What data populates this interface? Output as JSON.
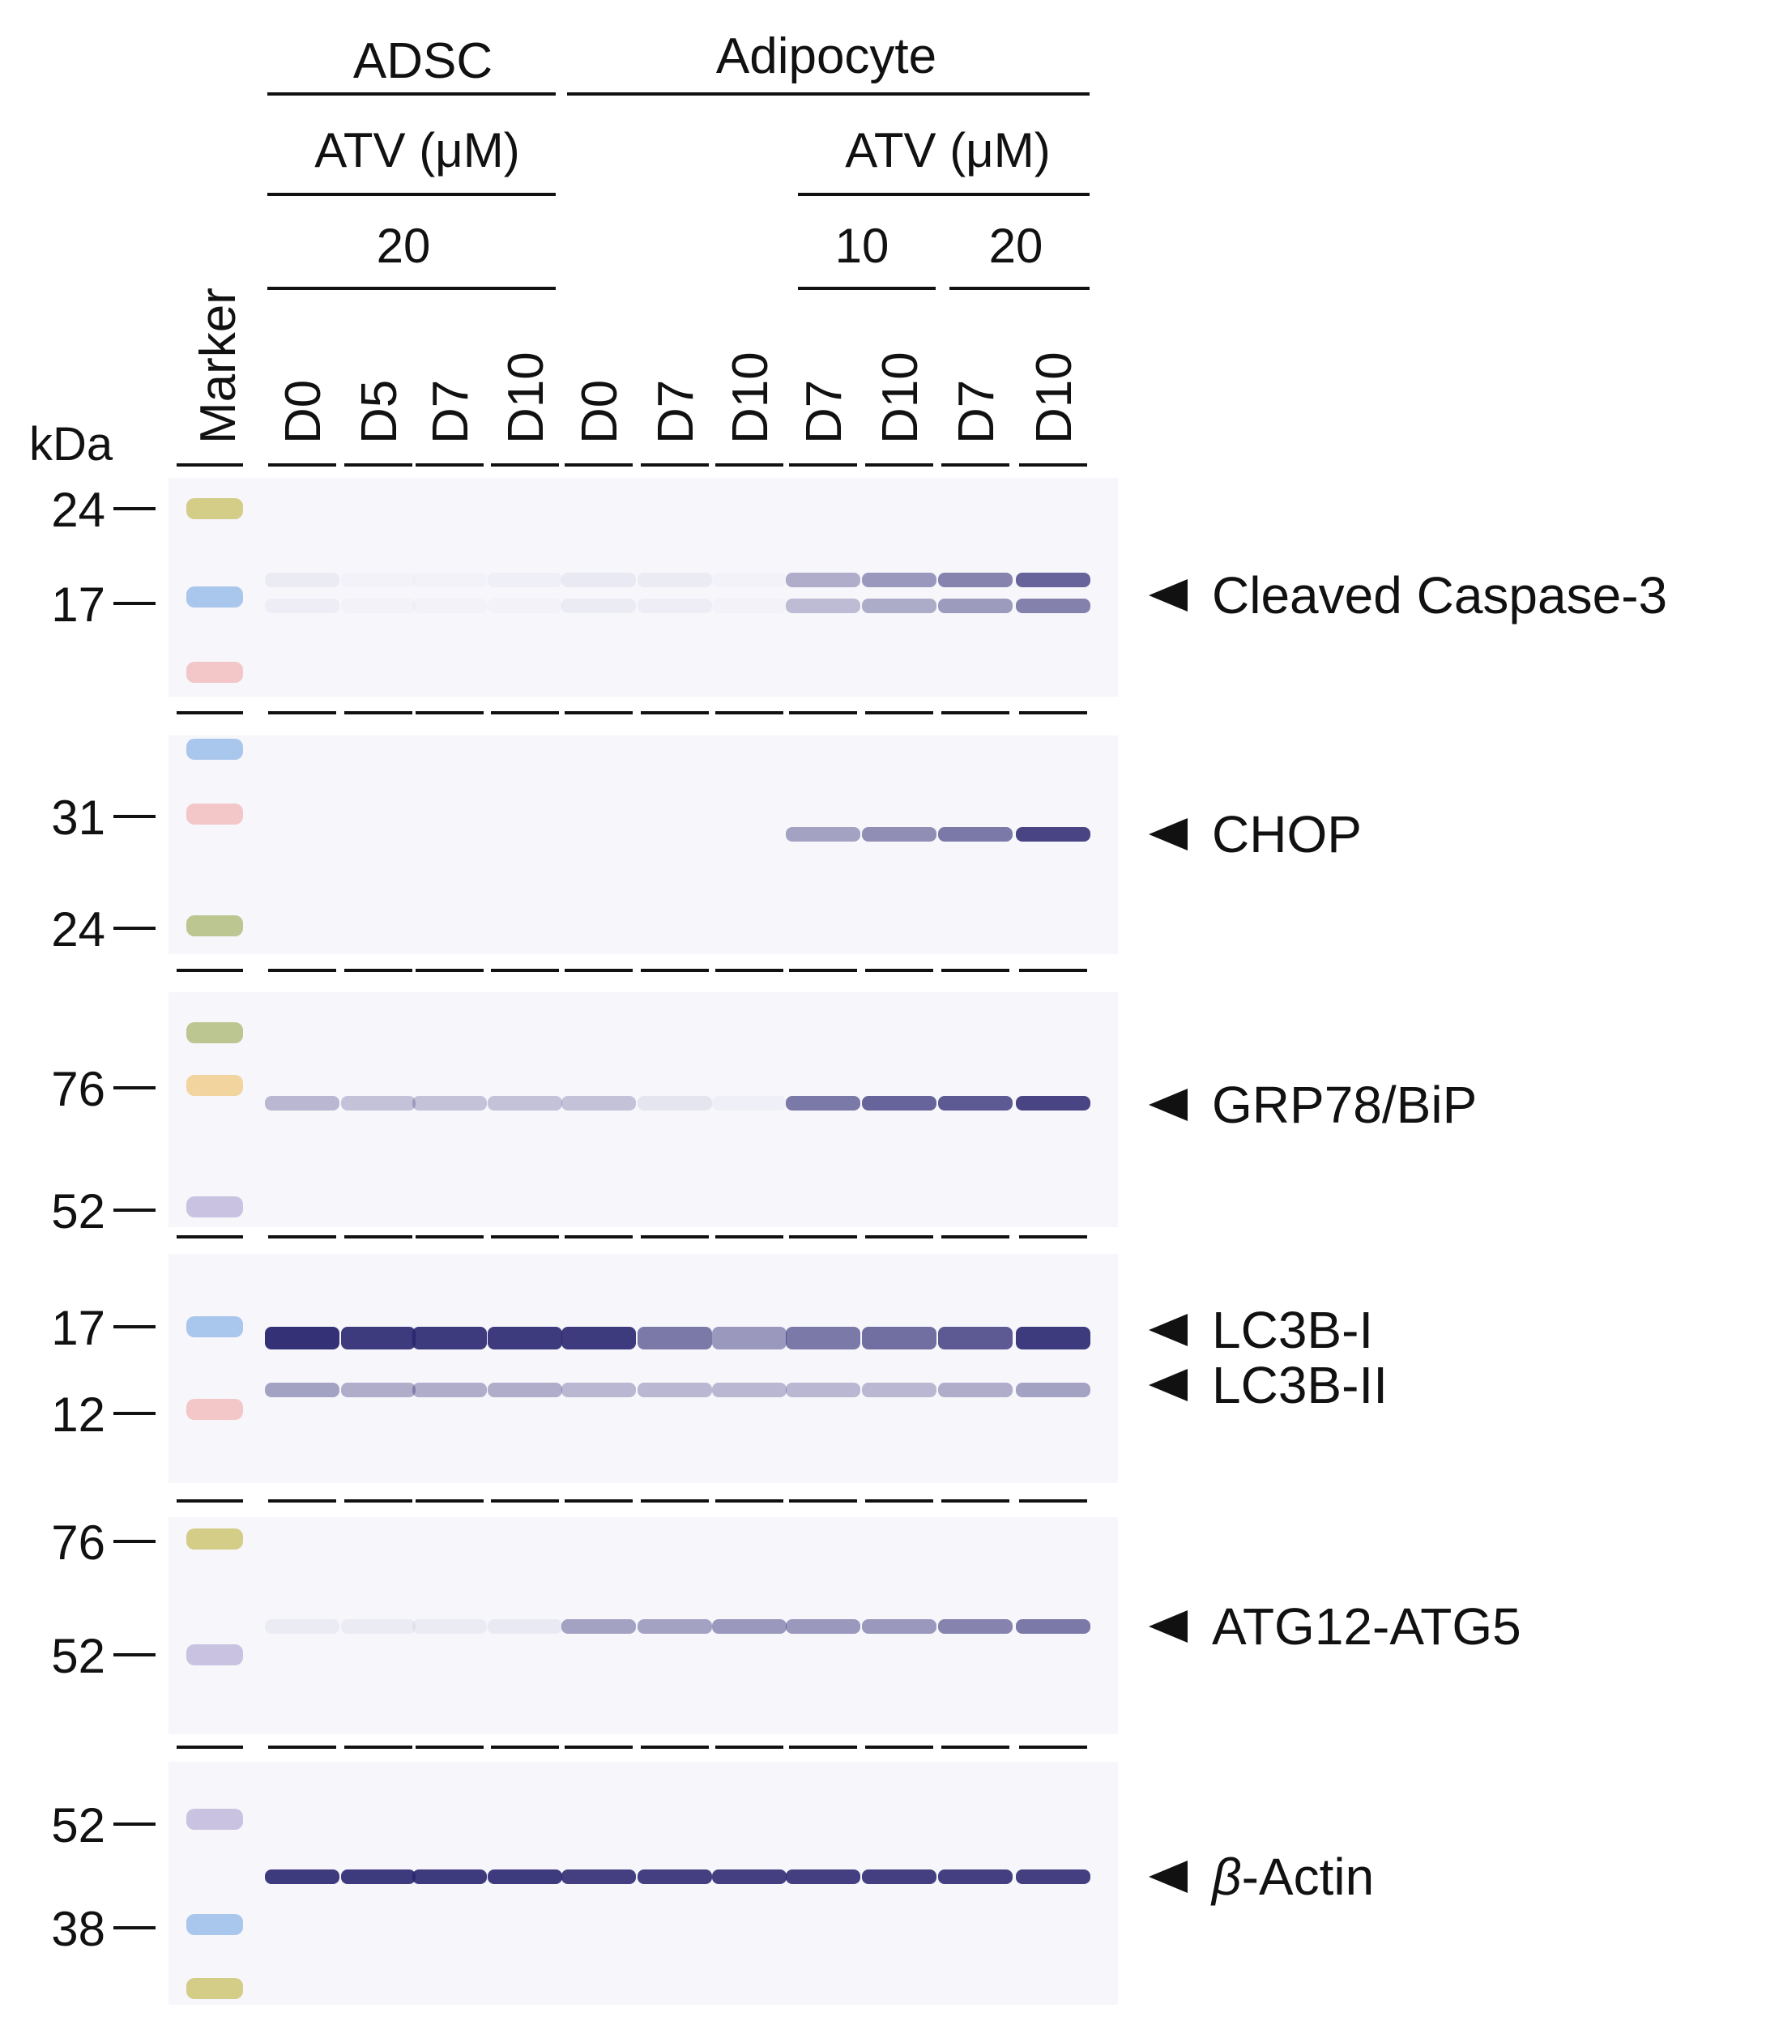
{
  "groups": {
    "adsc": "ADSC",
    "adipocyte": "Adipocyte"
  },
  "treatment": {
    "adsc_label": "ATV (μM)",
    "adipocyte_label": "ATV (μM)",
    "adsc_dose": "20",
    "adipocyte_dose_low": "10",
    "adipocyte_dose_high": "20"
  },
  "marker_label": "Marker",
  "unit_label": "kDa",
  "lanes": [
    "D0",
    "D5",
    "D7",
    "D10",
    "D0",
    "D7",
    "D10",
    "D7",
    "D10",
    "D7",
    "D10"
  ],
  "blots": [
    {
      "target": "Cleaved Caspase-3",
      "mw_markers": [
        "24",
        "17"
      ],
      "bands": [
        [
          0.05,
          0.02,
          0.02,
          0.03,
          0.06,
          0.05,
          0.02,
          0.35,
          0.45,
          0.55,
          0.7
        ]
      ]
    },
    {
      "target": "CHOP",
      "mw_markers": [
        "31",
        "24"
      ],
      "bands": [
        [
          0,
          0,
          0,
          0,
          0,
          0,
          0,
          0.4,
          0.5,
          0.6,
          0.85
        ]
      ]
    },
    {
      "target": "GRP78/BiP",
      "mw_markers": [
        "76",
        "52"
      ],
      "bands": [
        [
          0.3,
          0.25,
          0.25,
          0.25,
          0.25,
          0.08,
          0.03,
          0.6,
          0.7,
          0.75,
          0.85
        ]
      ]
    },
    {
      "target": "LC3B-I",
      "target2": "LC3B-II",
      "mw_markers": [
        "17",
        "12"
      ],
      "bands": [
        [
          0.95,
          0.9,
          0.9,
          0.9,
          0.9,
          0.6,
          0.45,
          0.6,
          0.65,
          0.75,
          0.9
        ],
        [
          0.4,
          0.35,
          0.35,
          0.35,
          0.3,
          0.3,
          0.3,
          0.3,
          0.3,
          0.35,
          0.4
        ]
      ]
    },
    {
      "target": "ATG12-ATG5",
      "mw_markers": [
        "76",
        "52"
      ],
      "bands": [
        [
          0.05,
          0.05,
          0.05,
          0.06,
          0.4,
          0.4,
          0.45,
          0.45,
          0.45,
          0.55,
          0.6
        ]
      ]
    },
    {
      "target": "β-Actin",
      "target_prefix": "β",
      "target_suffix": "-Actin",
      "mw_markers": [
        "52",
        "38"
      ],
      "bands": [
        [
          0.9,
          0.9,
          0.9,
          0.9,
          0.88,
          0.88,
          0.88,
          0.88,
          0.88,
          0.88,
          0.88
        ]
      ]
    }
  ],
  "colors": {
    "band": "#2a2670",
    "membrane": "#f6f6fb",
    "marker_yellow": "#c8bf62",
    "marker_blue": "#8fb5e8",
    "marker_pink": "#f1b7b7",
    "marker_green": "#a8b56e",
    "marker_orange": "#f0c880",
    "marker_purple": "#b9b1d8"
  }
}
